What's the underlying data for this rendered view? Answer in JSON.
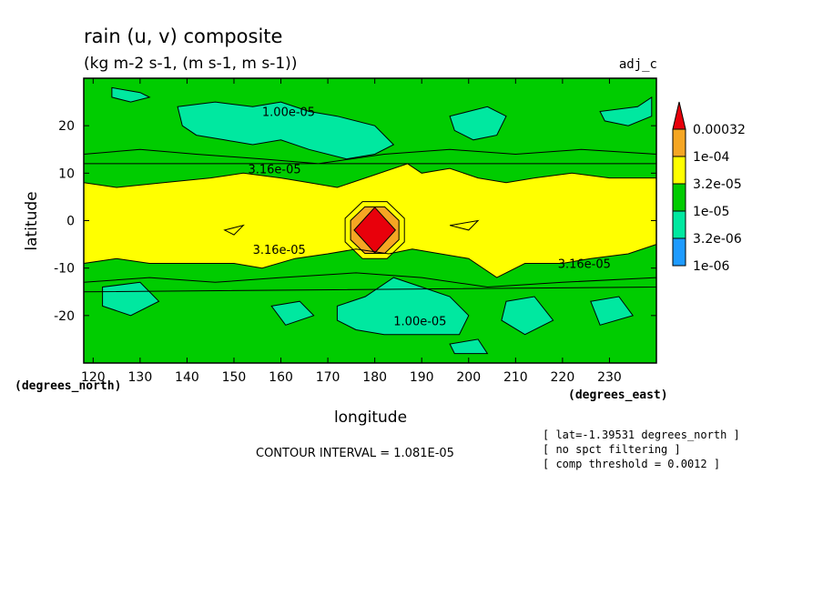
{
  "chart_data": {
    "type": "heatmap",
    "title": "rain (u, v) composite",
    "subtitle": "(kg m-2 s-1, (m s-1, m s-1))",
    "corner_label": "adj_c",
    "xlabel": "longitude",
    "ylabel": "latitude",
    "x_units": "(degrees_east)",
    "y_units": "(degrees_north)",
    "xlim": [
      118,
      240
    ],
    "ylim": [
      -30,
      30
    ],
    "xticks": [
      120,
      130,
      140,
      150,
      160,
      170,
      180,
      190,
      200,
      210,
      220,
      230
    ],
    "yticks": [
      20,
      10,
      0,
      -10,
      -20
    ],
    "contour_interval": "CONTOUR INTERVAL = 1.081E-05",
    "info_lines": [
      "[ lat=-1.39531 degrees_north ]",
      "[ no spct filtering ]",
      "[ comp threshold = 0.0012 ]"
    ],
    "colorbar": {
      "labels": [
        "0.00032",
        "1e-04",
        "3.2e-05",
        "1e-05",
        "3.2e-06",
        "1e-06"
      ],
      "colors": [
        "#e8000b",
        "#f5a623",
        "#ffff00",
        "#00cc00",
        "#00e8a0",
        "#1e9bff"
      ]
    },
    "contour_labels": [
      {
        "text": "1.00e-05",
        "lon": 156,
        "lat": 22
      },
      {
        "text": "3.16e-05",
        "lon": 153,
        "lat": 10
      },
      {
        "text": "3.16e-05",
        "lon": 154,
        "lat": -7
      },
      {
        "text": "3.16e-05",
        "lon": 219,
        "lat": -10
      },
      {
        "text": "1.00e-05",
        "lon": 184,
        "lat": -22
      }
    ],
    "features": {
      "peak_center": {
        "lon": 180,
        "lat": -2
      }
    }
  },
  "colors": {
    "green": "#00cc00",
    "teal": "#00e8a0",
    "yellow": "#ffff00",
    "orange": "#f5a623",
    "red": "#e8000b"
  }
}
